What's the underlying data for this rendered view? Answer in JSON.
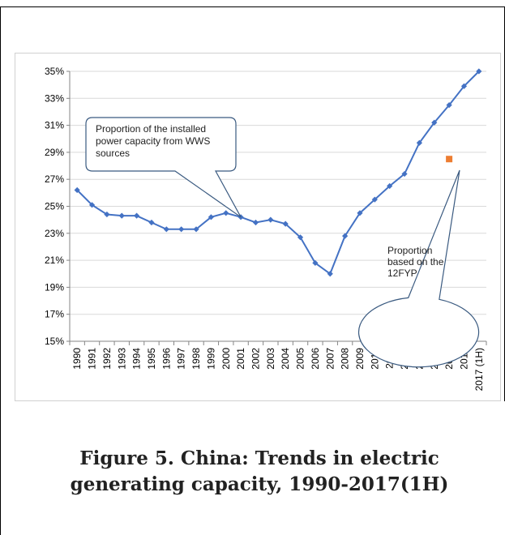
{
  "figure": {
    "caption_line1": "Figure 5. China: Trends in electric",
    "caption_line2": "generating capacity, 1990-2017(1H)"
  },
  "chart_data": {
    "type": "line",
    "title": "",
    "xlabel": "",
    "ylabel": "",
    "categories": [
      "1990",
      "1991",
      "1992",
      "1993",
      "1994",
      "1995",
      "1996",
      "1997",
      "1998",
      "1999",
      "2000",
      "2001",
      "2002",
      "2003",
      "2004",
      "2005",
      "2006",
      "2007",
      "2008",
      "2009",
      "2010",
      "2011",
      "2012",
      "2013",
      "2014",
      "2015",
      "2016",
      "2017 (1H)"
    ],
    "series": [
      {
        "color": "#4472c4",
        "values": [
          26.2,
          25.1,
          24.4,
          24.3,
          24.3,
          23.8,
          23.3,
          23.3,
          23.3,
          24.2,
          24.5,
          24.2,
          23.8,
          24.0,
          23.7,
          22.7,
          20.8,
          20.0,
          22.8,
          24.5,
          25.5,
          26.5,
          27.4,
          29.7,
          31.2,
          32.5,
          33.9,
          35.0
        ]
      }
    ],
    "target_point": {
      "category": "2015",
      "value": 28.5,
      "color": "#ed7d31"
    },
    "ylim": [
      15,
      35
    ],
    "yticks": [
      "15%",
      "17%",
      "19%",
      "21%",
      "23%",
      "25%",
      "27%",
      "29%",
      "31%",
      "33%",
      "35%"
    ],
    "grid": true,
    "annotations": [
      {
        "id": "wws",
        "lines": [
          "Proportion of the installed",
          "power capacity from WWS",
          "sources"
        ],
        "points_to": "2001"
      },
      {
        "id": "fyp",
        "lines": [
          "Proportion",
          "based on the",
          "12FYP"
        ],
        "points_to": "2015"
      }
    ]
  }
}
